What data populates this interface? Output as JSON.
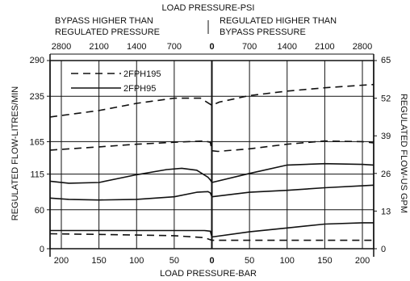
{
  "chart_data": {
    "type": "line",
    "title": "LOAD PRESSURE-PSI",
    "top_axis": {
      "left_caption_lines": [
        "BYPASS HIGHER THAN",
        "REGULATED PRESSURE"
      ],
      "right_caption_lines": [
        "REGULATED HIGHER THAN",
        "BYPASS PRESSURE"
      ],
      "tick_labels": [
        "2800",
        "2100",
        "1400",
        "700",
        "0",
        "700",
        "1400",
        "2100",
        "2800"
      ]
    },
    "xlabel": "LOAD PRESSURE-BAR",
    "x_tick_labels": [
      "200",
      "150",
      "100",
      "50",
      "0",
      "50",
      "100",
      "150",
      "200"
    ],
    "x_note": "signed load pressure in bar; negative = bypass higher than regulated (left half), positive = regulated higher than bypass (right half)",
    "xlim": [
      -215,
      215
    ],
    "ylabel": "REGULATED FLOW-LITRES/MIN",
    "y_ticks": [
      0,
      60,
      115,
      165,
      235,
      290
    ],
    "ylim": [
      0,
      290
    ],
    "y2label": "REGULATED FLOW-US GPM",
    "y2_ticks": [
      0,
      13,
      26,
      39,
      52,
      65
    ],
    "grid": true,
    "legend_position": "top-left",
    "legend": [
      {
        "label": "2FPH195",
        "style": "dashed"
      },
      {
        "label": "2FPH95",
        "style": "solid"
      }
    ],
    "series": [
      {
        "name": "2FPH195",
        "style": "dashed",
        "x": [
          -215,
          -150,
          -100,
          -50,
          -15,
          0,
          10,
          50,
          100,
          150,
          200,
          215
        ],
        "y": [
          203,
          213,
          224,
          232,
          232,
          221,
          226,
          236,
          243,
          248,
          252,
          253
        ]
      },
      {
        "name": "2FPH195",
        "style": "dashed",
        "x": [
          -215,
          -150,
          -100,
          -50,
          -10,
          -2,
          0,
          8,
          50,
          100,
          150,
          200,
          215
        ],
        "y": [
          152,
          157,
          161,
          164,
          166,
          164,
          151,
          150,
          154,
          161,
          166,
          165,
          163
        ]
      },
      {
        "name": "2FPH195",
        "style": "dashed",
        "x": [
          -215,
          -150,
          -100,
          -50,
          -10,
          0,
          50,
          100,
          150,
          200,
          215
        ],
        "y": [
          23,
          22,
          21,
          20,
          17,
          13,
          13,
          13,
          13,
          13,
          13
        ]
      },
      {
        "name": "2FPH95",
        "style": "solid",
        "x": [
          -215,
          -190,
          -150,
          -100,
          -60,
          -40,
          -20,
          -5,
          -2,
          0,
          50,
          100,
          150,
          200,
          215
        ],
        "y": [
          104,
          101,
          102,
          114,
          122,
          124,
          121,
          110,
          106,
          102,
          116,
          129,
          131,
          130,
          129
        ]
      },
      {
        "name": "2FPH95",
        "style": "solid",
        "x": [
          -215,
          -190,
          -150,
          -100,
          -50,
          -20,
          -5,
          -2,
          0,
          50,
          100,
          150,
          200,
          215
        ],
        "y": [
          78,
          76,
          75,
          76,
          80,
          87,
          88,
          86,
          80,
          87,
          90,
          94,
          97,
          98
        ]
      },
      {
        "name": "2FPH95",
        "style": "solid",
        "x": [
          -215,
          -150,
          -100,
          -50,
          -10,
          -2,
          0,
          50,
          100,
          150,
          200,
          215
        ],
        "y": [
          28,
          28,
          28,
          28,
          28,
          27,
          18,
          26,
          32,
          38,
          40,
          40
        ]
      }
    ]
  }
}
